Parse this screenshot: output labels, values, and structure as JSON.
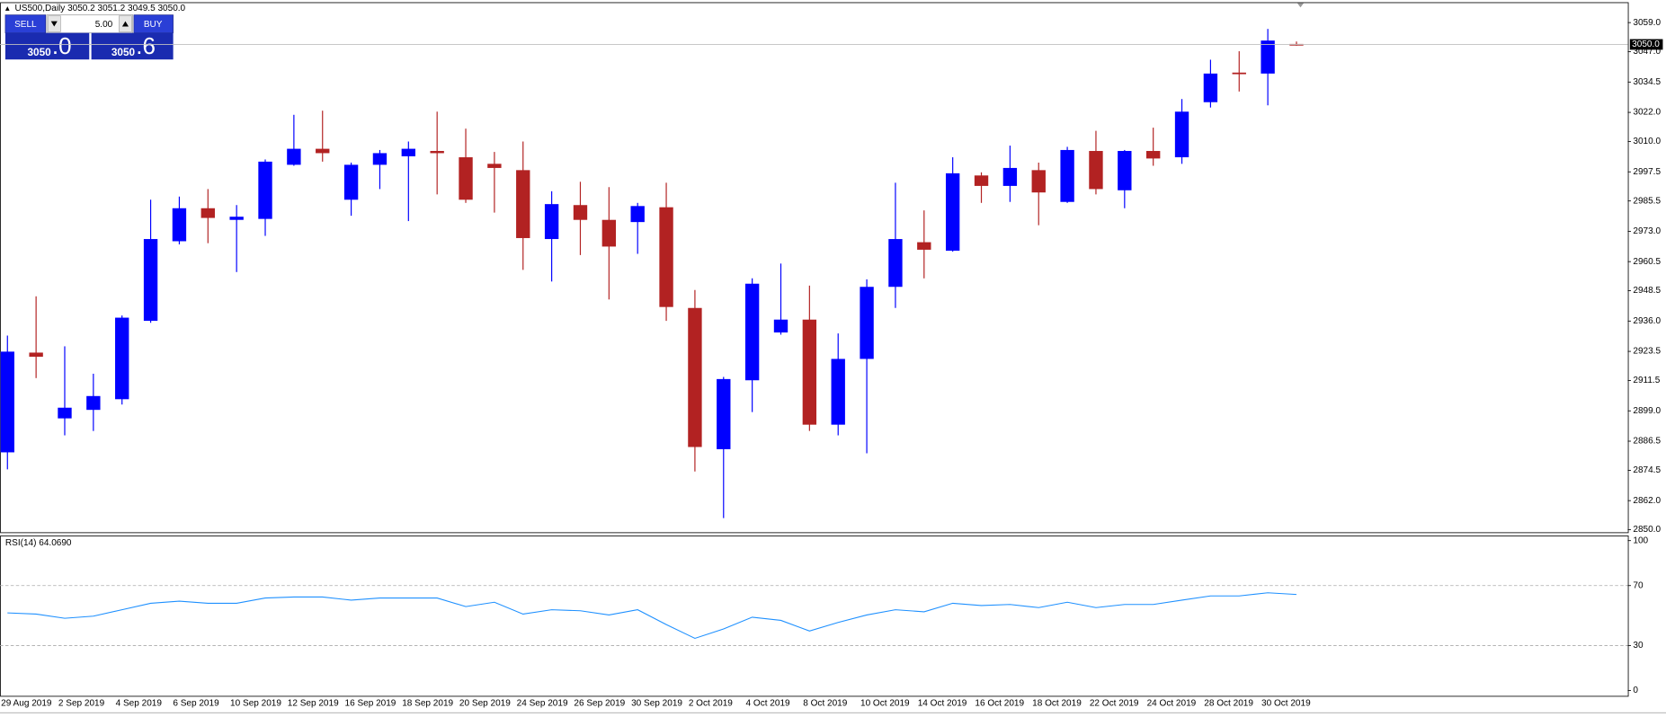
{
  "chart_data": {
    "type": "candlestick",
    "title": "US500,Daily  3050.2 3051.2 3049.5 3050.0",
    "categories": [
      "29 Aug 2019",
      null,
      "2 Sep 2019",
      null,
      "4 Sep 2019",
      null,
      "6 Sep 2019",
      null,
      "10 Sep 2019",
      null,
      "12 Sep 2019",
      null,
      "16 Sep 2019",
      null,
      "18 Sep 2019",
      null,
      "20 Sep 2019",
      null,
      "24 Sep 2019",
      null,
      "26 Sep 2019",
      null,
      "30 Sep 2019",
      null,
      "2 Oct 2019",
      null,
      "4 Oct 2019",
      null,
      "8 Oct 2019",
      null,
      "10 Oct 2019",
      null,
      "14 Oct 2019",
      null,
      "16 Oct 2019",
      null,
      "18 Oct 2019",
      null,
      "22 Oct 2019",
      null,
      "24 Oct 2019",
      null,
      "28 Oct 2019",
      null,
      "30 Oct 2019",
      null
    ],
    "open": [
      2881.9,
      2923.0,
      2895.9,
      2899.4,
      2903.8,
      2936.1,
      2968.9,
      2982.5,
      2977.7,
      2978.1,
      3000.4,
      3007.0,
      2986.0,
      3000.4,
      3003.9,
      3006.1,
      3003.5,
      3000.8,
      2998.2,
      2969.8,
      2983.8,
      2977.7,
      2976.8,
      2982.9,
      2941.4,
      2883.2,
      2911.6,
      2931.3,
      2936.6,
      2893.3,
      2920.4,
      2950.1,
      2968.5,
      2965.0,
      2996.0,
      2991.7,
      2998.2,
      2985.1,
      3006.1,
      2989.9,
      3006.1,
      3003.5,
      3026.2,
      3038.4,
      3038.0,
      3050.2
    ],
    "high": [
      2930.0,
      2946.2,
      2925.6,
      2914.3,
      2938.3,
      2986.0,
      2987.3,
      2990.4,
      2983.8,
      3002.6,
      3021.0,
      3022.7,
      3001.3,
      3006.5,
      3010.0,
      3022.3,
      3015.3,
      3005.7,
      3010.0,
      2989.5,
      2993.4,
      2991.2,
      2984.7,
      2993.0,
      2948.8,
      2913.0,
      2953.6,
      2959.7,
      2950.6,
      2930.9,
      2953.2,
      2993.0,
      2981.6,
      3003.5,
      2997.3,
      3008.3,
      3001.3,
      3007.8,
      3014.4,
      3006.5,
      3015.7,
      3027.5,
      3043.7,
      3047.2,
      3056.4,
      3051.2
    ],
    "low": [
      2874.9,
      2912.5,
      2888.9,
      2890.7,
      2901.6,
      2935.3,
      2967.6,
      2968.1,
      2956.2,
      2971.1,
      3000.0,
      3001.7,
      2979.4,
      2990.4,
      2977.2,
      2988.2,
      2984.7,
      2980.7,
      2957.1,
      2952.3,
      2963.2,
      2944.9,
      2963.7,
      2936.1,
      2874.0,
      2854.8,
      2898.5,
      2930.4,
      2890.7,
      2888.9,
      2881.5,
      2941.4,
      2953.6,
      2964.6,
      2984.7,
      2985.1,
      2975.5,
      2984.7,
      2988.2,
      2982.5,
      3000.0,
      3000.8,
      3024.0,
      3030.6,
      3024.9,
      3049.5
    ],
    "close": [
      2923.4,
      2921.3,
      2900.3,
      2905.1,
      2937.4,
      2969.8,
      2982.5,
      2978.5,
      2979.0,
      3001.7,
      3007.0,
      3005.2,
      3000.4,
      3005.2,
      3007.0,
      3005.2,
      2986.0,
      2999.1,
      2970.2,
      2984.2,
      2977.7,
      2966.7,
      2983.4,
      2941.8,
      2884.1,
      2912.1,
      2951.4,
      2936.6,
      2893.3,
      2920.4,
      2950.1,
      2969.8,
      2965.4,
      2996.9,
      2991.7,
      2999.1,
      2989.0,
      3006.5,
      2990.4,
      3006.1,
      3003.0,
      3022.3,
      3038.0,
      3038.0,
      3051.6,
      3050.0
    ],
    "up_color": "#0000ff",
    "down_color": "#b22222",
    "ylim": [
      2849,
      3067
    ],
    "yticks": [
      {
        "value": 3059,
        "label": "3059.0"
      },
      {
        "value": 3047,
        "label": "3047.0"
      },
      {
        "value": 3034.5,
        "label": "3034.5"
      },
      {
        "value": 3022,
        "label": "3022.0"
      },
      {
        "value": 3010,
        "label": "3010.0"
      },
      {
        "value": 2997.5,
        "label": "2997.5"
      },
      {
        "value": 2985.5,
        "label": "2985.5"
      },
      {
        "value": 2973,
        "label": "2973.0"
      },
      {
        "value": 2960.5,
        "label": "2960.5"
      },
      {
        "value": 2948.5,
        "label": "2948.5"
      },
      {
        "value": 2936,
        "label": "2936.0"
      },
      {
        "value": 2923.5,
        "label": "2923.5"
      },
      {
        "value": 2911.5,
        "label": "2911.5"
      },
      {
        "value": 2899,
        "label": "2899.0"
      },
      {
        "value": 2886.5,
        "label": "2886.5"
      },
      {
        "value": 2874.5,
        "label": "2874.5"
      },
      {
        "value": 2862,
        "label": "2862.0"
      },
      {
        "value": 2850,
        "label": "2850.0"
      }
    ],
    "last_price": {
      "value": 3050,
      "label": "3050.0"
    },
    "indicator": {
      "title": "RSI(14) 64.0690",
      "color": "#1e90ff",
      "values": [
        51.8,
        51.0,
        48.2,
        49.6,
        53.9,
        58.2,
        59.6,
        58.2,
        58.2,
        61.7,
        62.4,
        62.4,
        60.3,
        61.7,
        61.7,
        61.7,
        56.0,
        58.9,
        51.0,
        53.9,
        53.2,
        50.4,
        53.9,
        44.0,
        34.8,
        41.1,
        48.9,
        46.8,
        39.7,
        45.4,
        50.4,
        53.9,
        52.5,
        58.2,
        56.7,
        57.4,
        55.3,
        58.9,
        55.3,
        57.4,
        57.4,
        60.3,
        63.1,
        63.1,
        65.2,
        64.069
      ],
      "ylim": [
        -3.5,
        102.8
      ],
      "yticks": [
        100,
        70,
        30,
        0
      ],
      "levels": [
        70,
        30
      ]
    }
  },
  "trade_panel": {
    "sell": "SELL",
    "buy": "BUY",
    "volume": "5.00",
    "bid_big": "3050",
    "bid_small": ".0",
    "ask_big": "3050",
    "ask_small": ".6"
  }
}
